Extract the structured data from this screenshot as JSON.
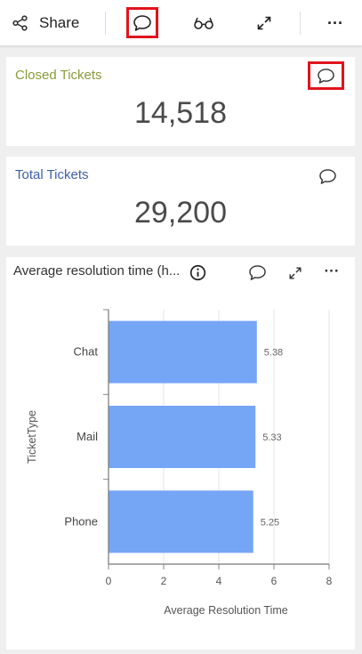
{
  "toolbar": {
    "share_label": "Share",
    "icons": [
      "share-icon",
      "comment-icon",
      "glasses-icon",
      "expand-icon",
      "more-icon"
    ],
    "more_label": "···"
  },
  "cards": [
    {
      "title": "Closed Tickets",
      "value": "14,518",
      "title_color": "#8a9a3a"
    },
    {
      "title": "Total Tickets",
      "value": "29,200",
      "title_color": "#3e5fa6"
    }
  ],
  "chart_panel": {
    "title": "Average resolution time (h...",
    "more_label": "···"
  },
  "colors": {
    "bar": "#75a5f5",
    "highlight": "#e0141e"
  },
  "chart_data": {
    "type": "bar",
    "orientation": "horizontal",
    "categories": [
      "Chat",
      "Mail",
      "Phone"
    ],
    "values": [
      5.38,
      5.33,
      5.25
    ],
    "value_labels": [
      "5.38",
      "5.33",
      "5.25"
    ],
    "xlabel": "Average Resolution Time",
    "ylabel": "TicketType",
    "xlim": [
      0,
      8
    ],
    "xticks": [
      "0",
      "2",
      "4",
      "6",
      "8"
    ],
    "grid": true
  }
}
